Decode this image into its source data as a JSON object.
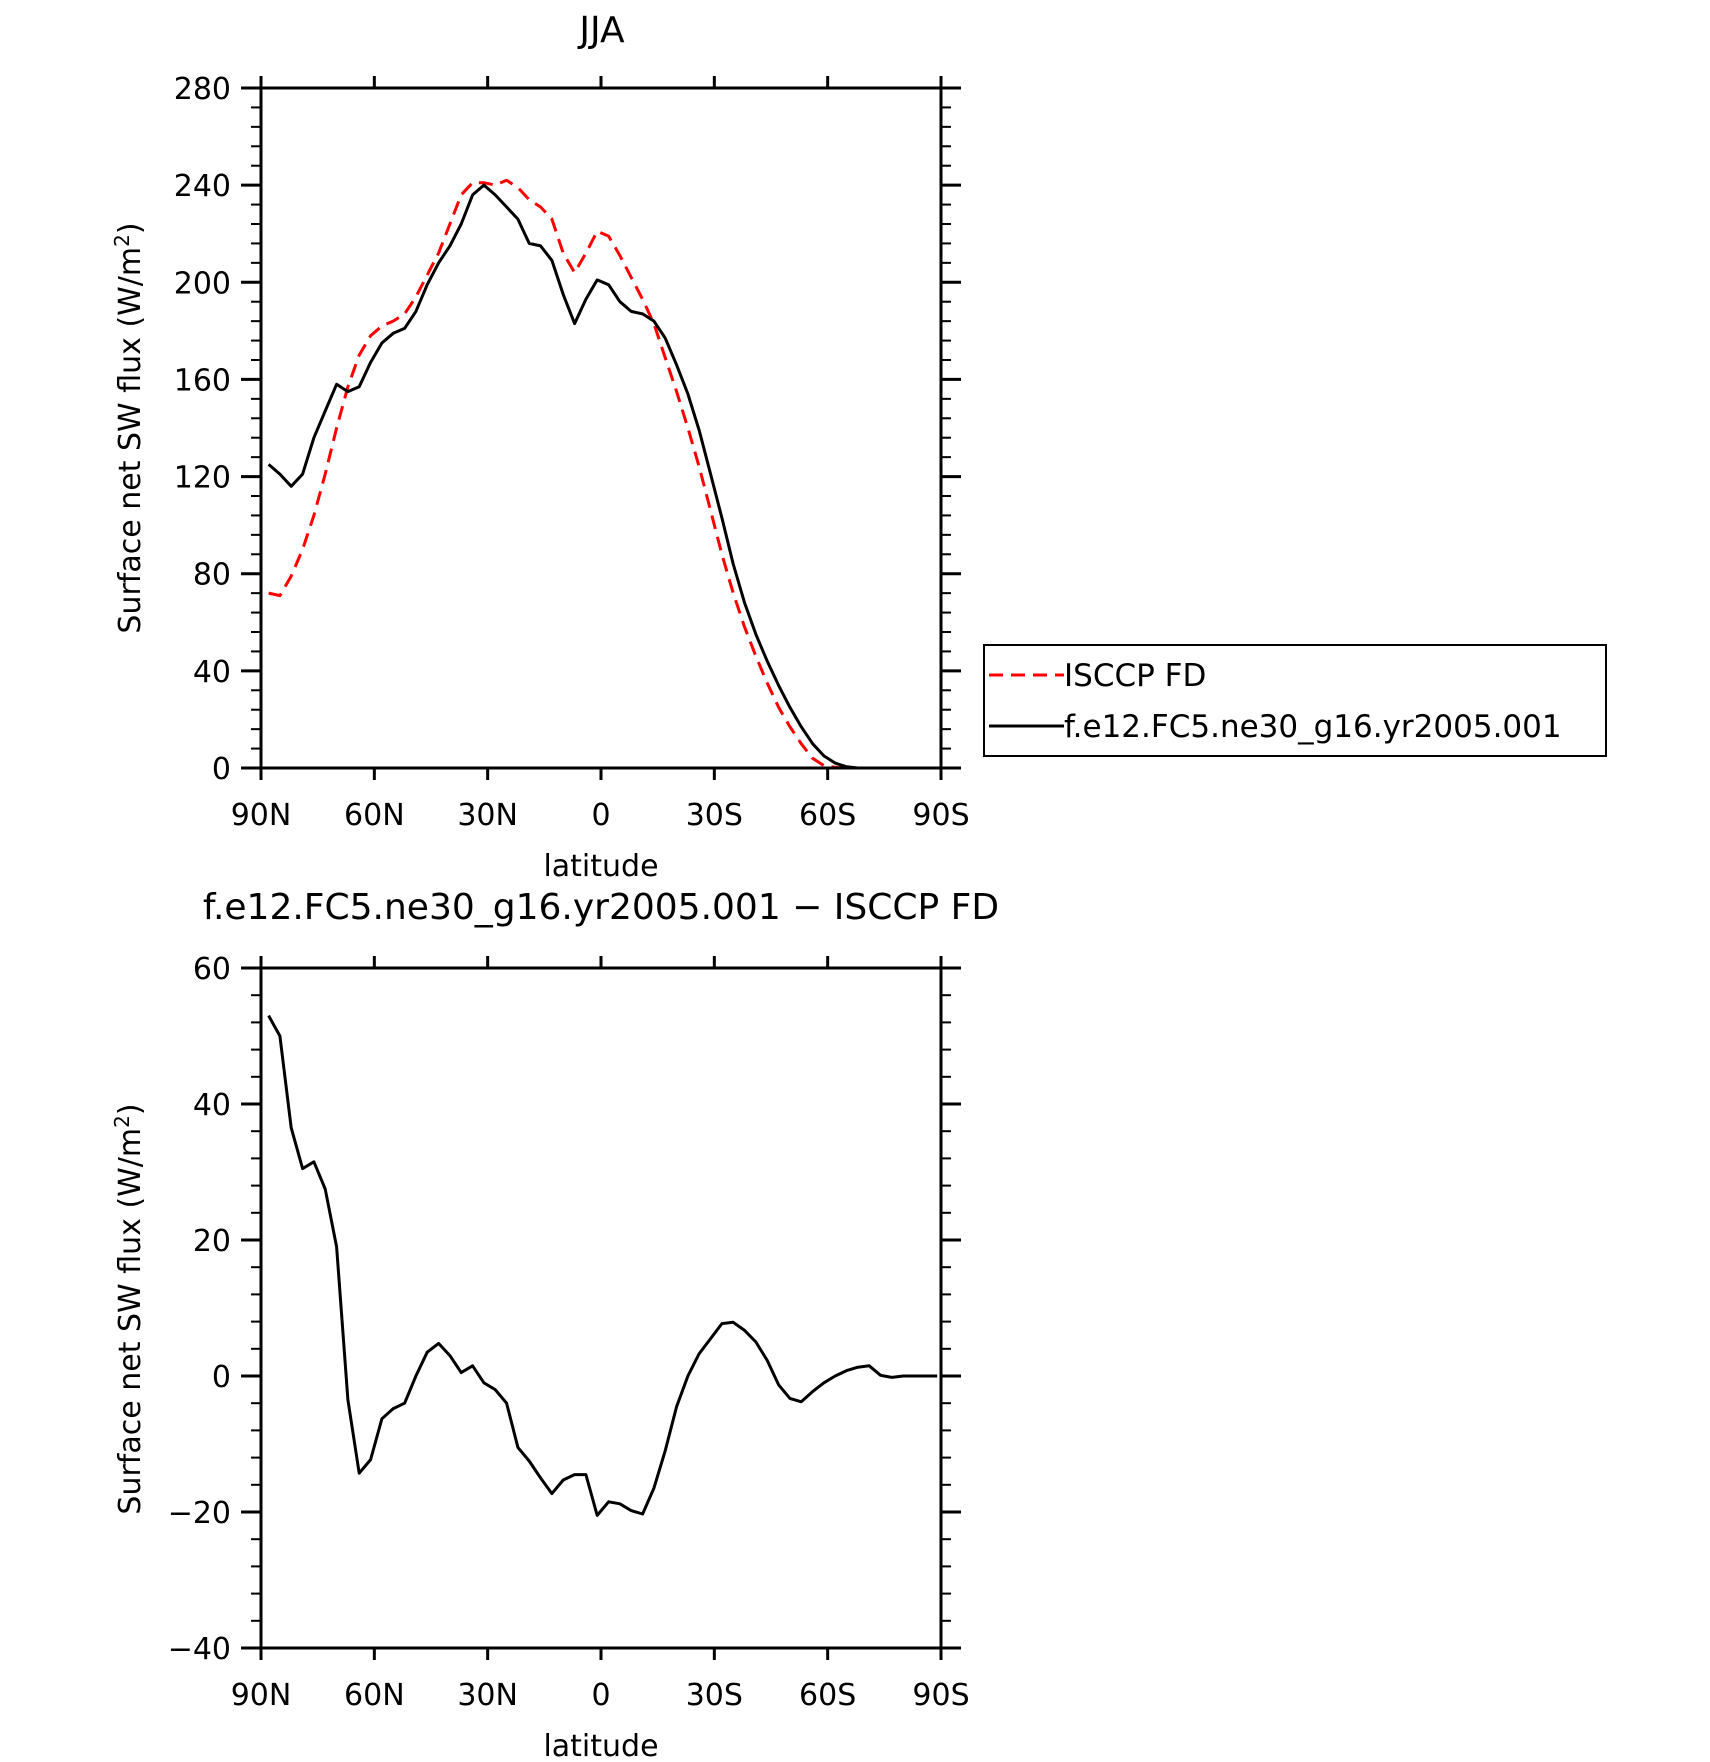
{
  "chart_data": [
    {
      "type": "line",
      "title": "JJA",
      "xlabel": "latitude",
      "ylabel": "Surface net SW flux (W/m²)",
      "ylabel_main": "Surface net SW flux (W/m",
      "ylabel_sup": "2",
      "ylabel_end": ")",
      "xlim": [
        90,
        -90
      ],
      "ylim": [
        0,
        280
      ],
      "x_ticks": [
        90,
        60,
        30,
        0,
        -30,
        -60,
        -90
      ],
      "x_tick_labels": [
        "90N",
        "60N",
        "30N",
        "0",
        "30S",
        "60S",
        "90S"
      ],
      "y_ticks": [
        0,
        40,
        80,
        120,
        160,
        200,
        240,
        280
      ],
      "y_tick_labels": [
        "0",
        "40",
        "80",
        "120",
        "160",
        "200",
        "240",
        "280"
      ],
      "legend_position": "right",
      "series": [
        {
          "name": "ISCCP FD",
          "color": "#ff0000",
          "style": "dashed",
          "x": [
            88,
            85,
            82,
            79,
            76,
            73,
            70,
            67,
            64,
            61,
            58,
            55,
            52,
            49,
            46,
            43,
            40,
            37,
            34,
            31,
            28,
            25,
            22,
            19,
            16,
            13,
            10,
            7,
            4,
            1,
            -2,
            -5,
            -8,
            -11,
            -14,
            -17,
            -20,
            -23,
            -26,
            -29,
            -32,
            -35,
            -38,
            -41,
            -44,
            -47,
            -50,
            -53,
            -56,
            -59,
            -62,
            -65,
            -68,
            -71,
            -74,
            -77,
            -80,
            -83,
            -86,
            -89
          ],
          "y": [
            72,
            71,
            79,
            90,
            104,
            121,
            140,
            157,
            170,
            178,
            182,
            184,
            187,
            194,
            203,
            212,
            224,
            236,
            241,
            241,
            240,
            242,
            239,
            234,
            231,
            226,
            212,
            204,
            212,
            221,
            219,
            211,
            202,
            193,
            183,
            169,
            155,
            140,
            124,
            106,
            88,
            72,
            58,
            46,
            35,
            25,
            17,
            10,
            4,
            1,
            0.3,
            0,
            0,
            0,
            0,
            0,
            0,
            0,
            0,
            0
          ]
        },
        {
          "name": "f.e12.FC5.ne30_g16.yr2005.001",
          "color": "#000000",
          "style": "solid",
          "x": [
            88,
            85,
            82,
            79,
            76,
            73,
            70,
            67,
            64,
            61,
            58,
            55,
            52,
            49,
            46,
            43,
            40,
            37,
            34,
            31,
            28,
            25,
            22,
            19,
            16,
            13,
            10,
            7,
            4,
            1,
            -2,
            -5,
            -8,
            -11,
            -14,
            -17,
            -20,
            -23,
            -26,
            -29,
            -32,
            -35,
            -38,
            -41,
            -44,
            -47,
            -50,
            -53,
            -56,
            -59,
            -62,
            -65,
            -68,
            -71,
            -74,
            -77,
            -80,
            -83,
            -86,
            -89
          ],
          "y": [
            125,
            121,
            116,
            121,
            136,
            147,
            158,
            155,
            157,
            167,
            175,
            179,
            181,
            188,
            199,
            208,
            215,
            224,
            236,
            240,
            236,
            231,
            226,
            216,
            215,
            209,
            195,
            183,
            193,
            201,
            199,
            192,
            188,
            187,
            184,
            177,
            166,
            154,
            139,
            121,
            103,
            84,
            68,
            55,
            44,
            34,
            25,
            17,
            10,
            5,
            2,
            0.5,
            0,
            0,
            0,
            0,
            0,
            0,
            0,
            0
          ]
        }
      ]
    },
    {
      "type": "line",
      "title": "f.e12.FC5.ne30_g16.yr2005.001 − ISCCP FD",
      "xlabel": "latitude",
      "ylabel": "Surface net SW flux (W/m²)",
      "ylabel_main": "Surface net SW flux (W/m",
      "ylabel_sup": "2",
      "ylabel_end": ")",
      "xlim": [
        90,
        -90
      ],
      "ylim": [
        -40,
        60
      ],
      "x_ticks": [
        90,
        60,
        30,
        0,
        -30,
        -60,
        -90
      ],
      "x_tick_labels": [
        "90N",
        "60N",
        "30N",
        "0",
        "30S",
        "60S",
        "90S"
      ],
      "y_ticks": [
        -40,
        -20,
        0,
        20,
        40,
        60
      ],
      "y_tick_labels": [
        "−40",
        "−20",
        "0",
        "20",
        "40",
        "60"
      ],
      "series": [
        {
          "color": "#000000",
          "style": "solid",
          "x": [
            88,
            85,
            82,
            79,
            76,
            73,
            70,
            67,
            64,
            61,
            58,
            55,
            52,
            49,
            46,
            43,
            40,
            37,
            34,
            31,
            28,
            25,
            22,
            19,
            16,
            13,
            10,
            7,
            4,
            1,
            -2,
            -5,
            -8,
            -11,
            -14,
            -17,
            -20,
            -23,
            -26,
            -29,
            -32,
            -35,
            -38,
            -41,
            -44,
            -47,
            -50,
            -53,
            -56,
            -59,
            -62,
            -65,
            -68,
            -71,
            -74,
            -77,
            -80,
            -83,
            -86,
            -89
          ],
          "y": [
            53,
            50,
            36.5,
            30.5,
            31.5,
            27.5,
            19,
            -3.5,
            -14.3,
            -12.3,
            -6.3,
            -4.8,
            -4,
            0,
            3.5,
            4.8,
            3,
            0.5,
            1.5,
            -1,
            -2,
            -4,
            -10.5,
            -12.5,
            -15,
            -17.3,
            -15.3,
            -14.5,
            -14.5,
            -20.5,
            -18.5,
            -18.8,
            -19.8,
            -20.3,
            -16.5,
            -11,
            -4.5,
            0,
            3.3,
            5.5,
            7.7,
            7.9,
            6.7,
            5,
            2.3,
            -1.3,
            -3.3,
            -3.8,
            -2.3,
            -1,
            0,
            0.8,
            1.3,
            1.5,
            0.1,
            -0.2,
            0,
            0,
            0,
            0
          ]
        }
      ]
    }
  ]
}
